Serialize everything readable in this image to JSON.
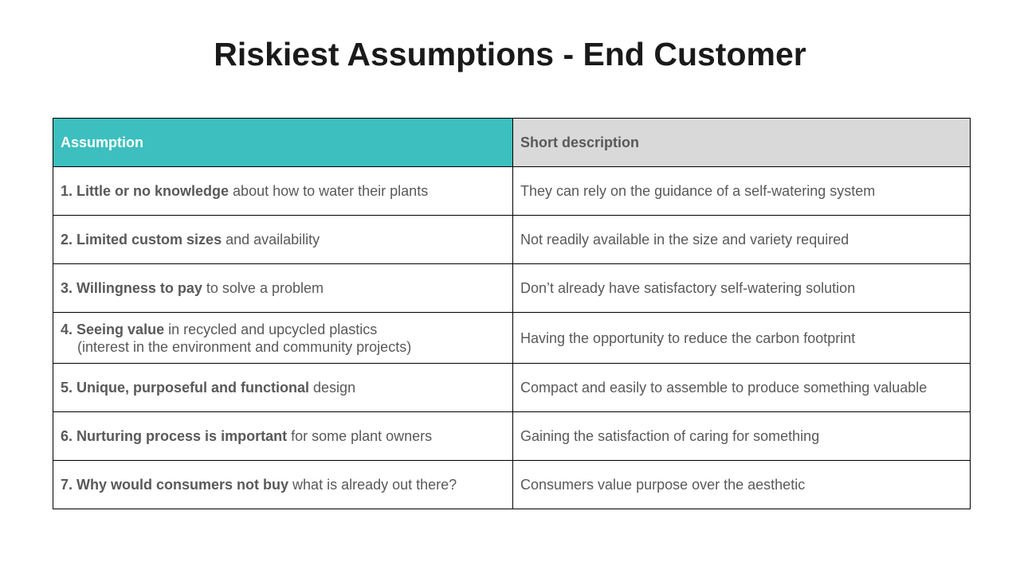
{
  "title": "Riskiest Assumptions - End Customer",
  "table": {
    "headers": {
      "assumption": "Assumption",
      "description": "Short description"
    },
    "rows": [
      {
        "number": "1.",
        "bold": "Little or no knowledge",
        "rest": " about how to water their plants",
        "second_line": "",
        "description": "They can rely on the guidance of a self-watering system"
      },
      {
        "number": "2.",
        "bold": "Limited custom sizes",
        "rest": " and availability",
        "second_line": "",
        "description": "Not readily available in the size and variety required"
      },
      {
        "number": "3.",
        "bold": "Willingness to pay",
        "rest": " to solve a problem",
        "second_line": "",
        "description": "Don’t already have satisfactory self-watering solution"
      },
      {
        "number": "4.",
        "bold": "Seeing value",
        "rest": " in recycled and upcycled plastics",
        "second_line": "(interest in the environment and community projects)",
        "description": "Having the opportunity to reduce the carbon footprint"
      },
      {
        "number": "5.",
        "bold": "Unique, purposeful and functional",
        "rest": " design",
        "second_line": "",
        "description": "Compact and easily to assemble to produce something valuable"
      },
      {
        "number": "6.",
        "bold": "Nurturing process is important",
        "rest": " for some plant owners",
        "second_line": "",
        "description": "Gaining the satisfaction of caring for something"
      },
      {
        "number": "7.",
        "bold": "Why would consumers not buy",
        "rest": " what is already out there?",
        "second_line": "",
        "description": "Consumers value purpose over the aesthetic"
      }
    ]
  },
  "colors": {
    "assumption_header_bg": "#3dbfbf",
    "description_header_bg": "#d9d9d9",
    "title_text": "#1a1a1a",
    "body_text": "#595959"
  }
}
